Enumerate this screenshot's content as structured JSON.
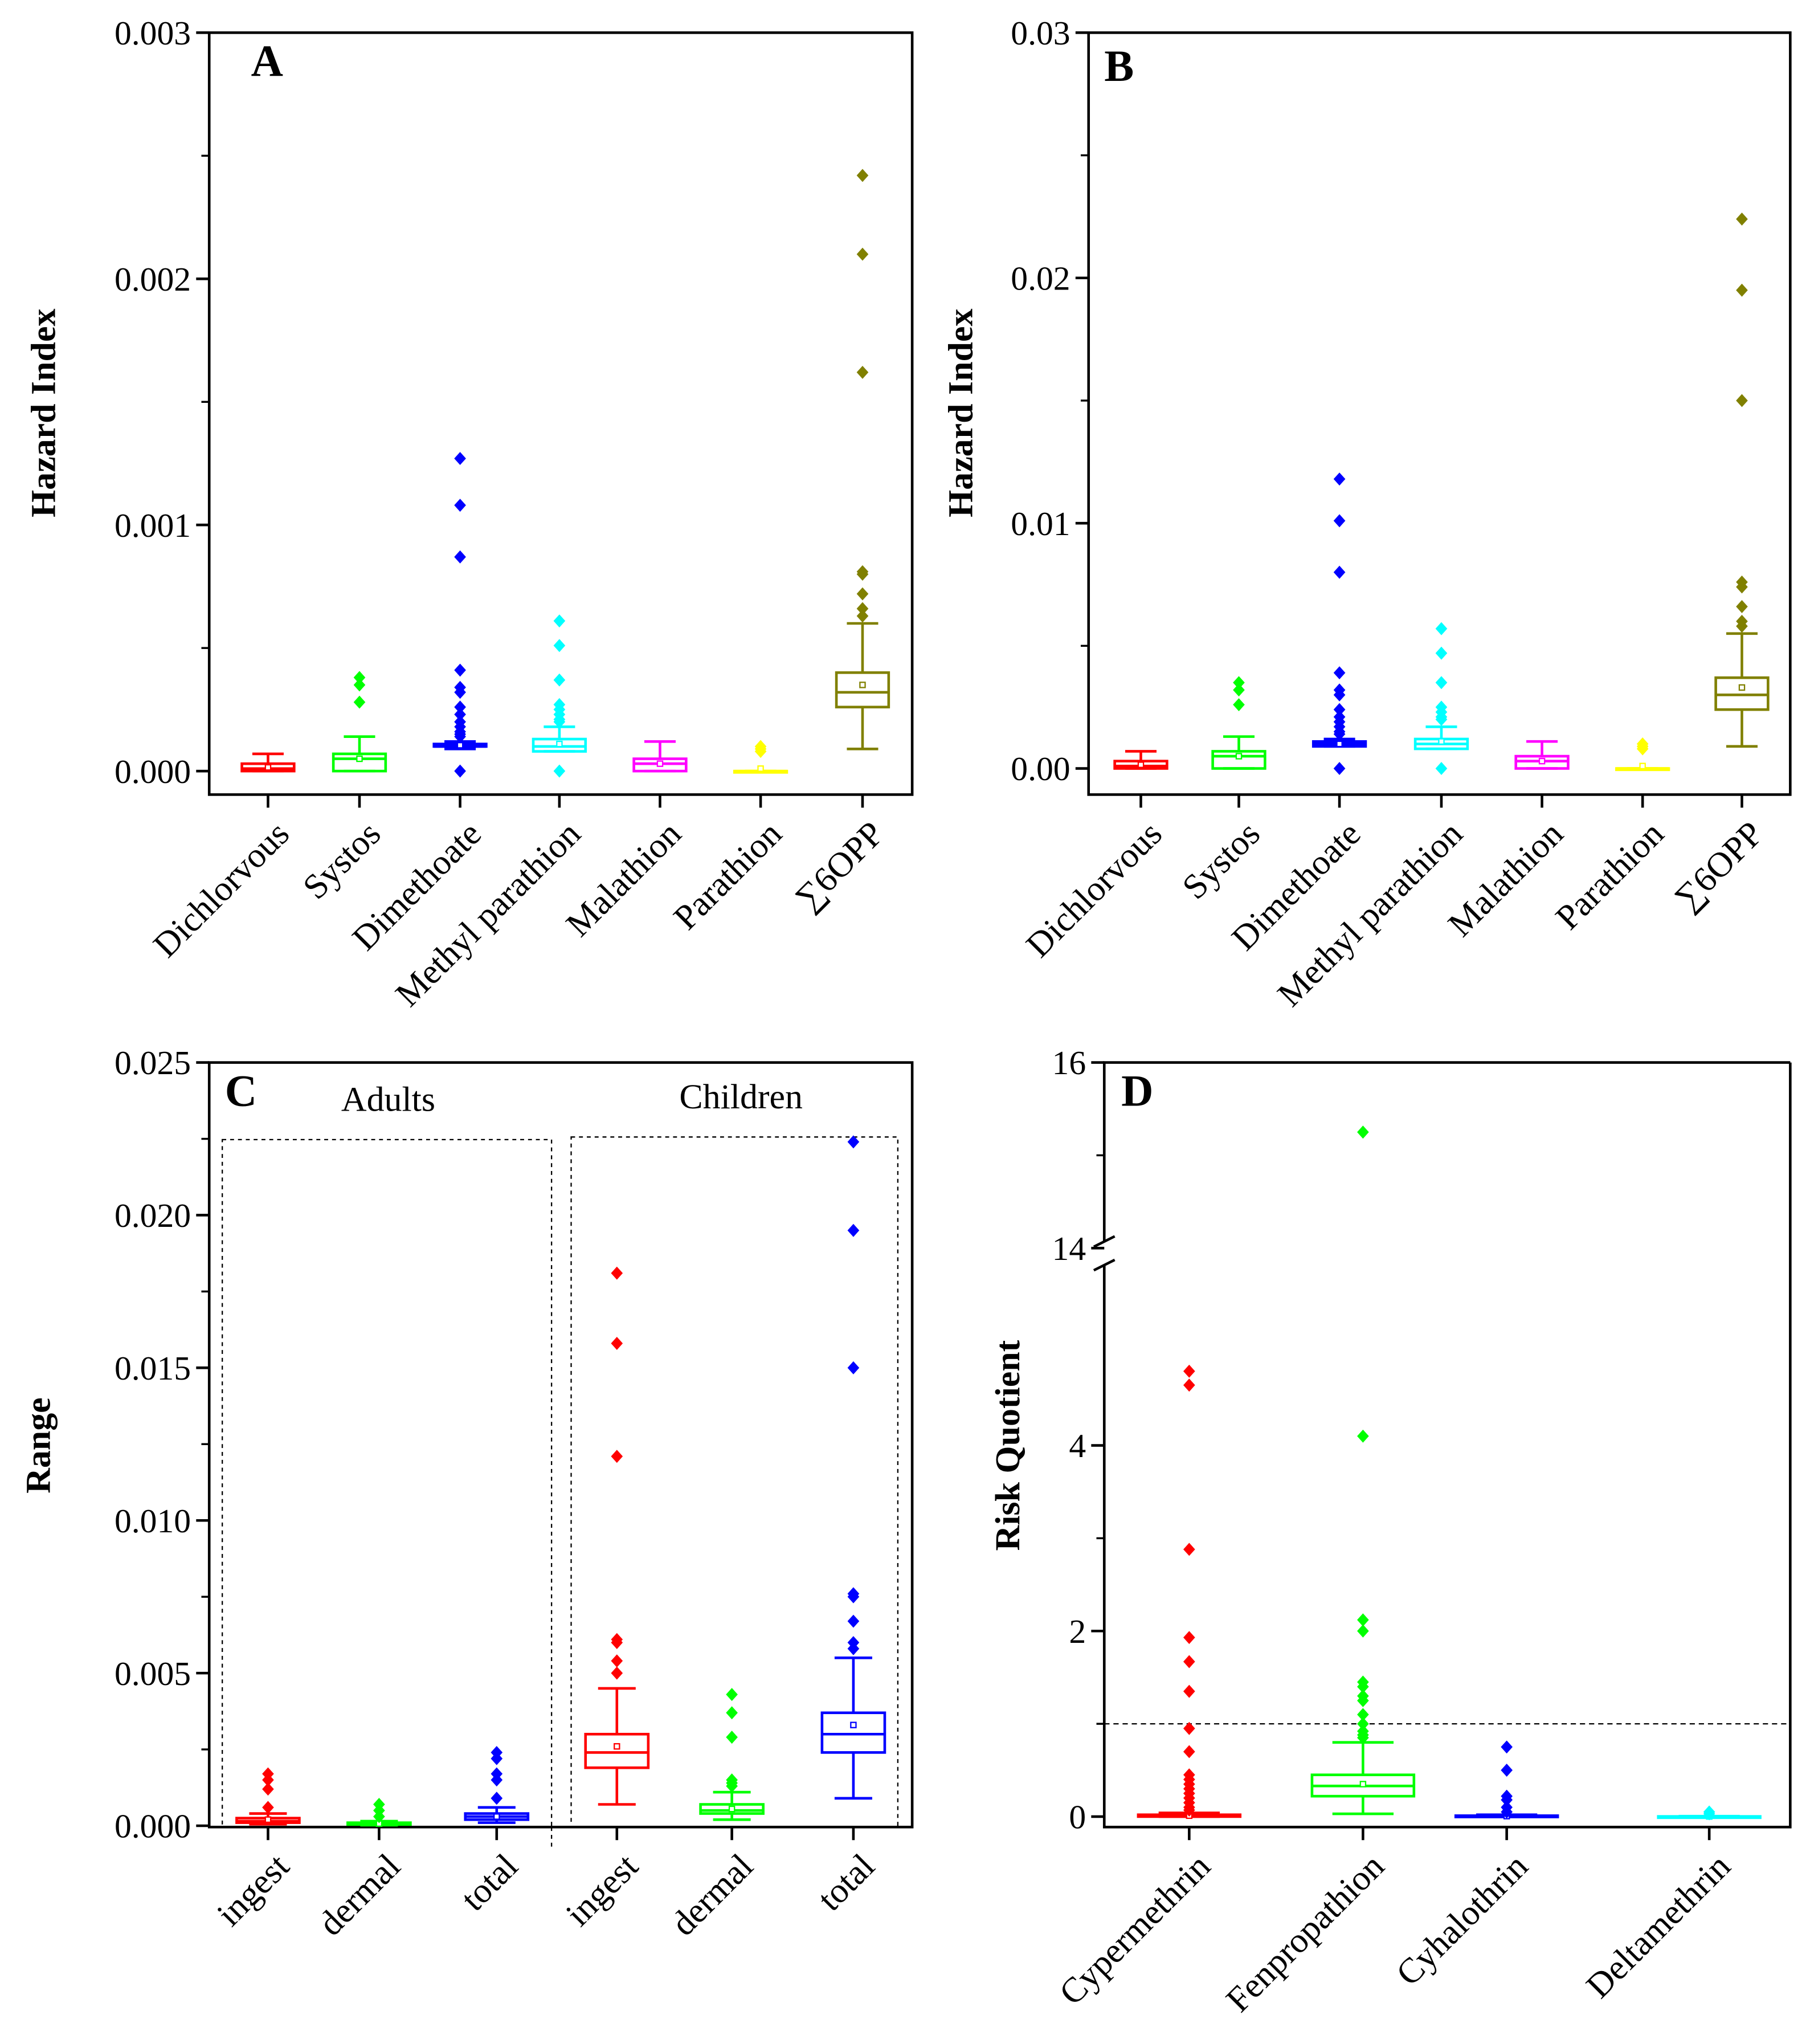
{
  "chart_data": [
    {
      "panel": "A",
      "type": "box",
      "ylabel": "Hazard Index",
      "ylim": [
        0,
        0.003
      ],
      "yticks": [
        "0.000",
        "0.001",
        "0.002",
        "0.003"
      ],
      "ytick_values": [
        0,
        0.001,
        0.002,
        0.003
      ],
      "categories": [
        "Dichlorvous",
        "Systos",
        "Dimethoate",
        "Methyl parathion",
        "Malathion",
        "Parathion",
        "∑6OPP"
      ],
      "colors": [
        "#ff0000",
        "#00ff00",
        "#0000ff",
        "#00ffff",
        "#ff00ff",
        "#ffff00",
        "#808000"
      ],
      "boxes": [
        {
          "min": 0,
          "q1": 0,
          "median": 1e-05,
          "q3": 3e-05,
          "max": 7e-05,
          "mean": 1.5e-05,
          "outliers": []
        },
        {
          "min": 0,
          "q1": 0,
          "median": 5e-05,
          "q3": 7e-05,
          "max": 0.00014,
          "mean": 5e-05,
          "outliers": [
            0.00038,
            0.00035,
            0.00028
          ]
        },
        {
          "min": 9e-05,
          "q1": 0.0001,
          "median": 0.0001,
          "q3": 0.00011,
          "max": 0.00012,
          "mean": 0.000105,
          "outliers": [
            0.00127,
            0.00108,
            0.00087,
            0.00041,
            0.00034,
            0.00032,
            0.00026,
            0.00023,
            0.0002,
            0.00018,
            0.00016,
            0.00015,
            0.00014,
            0
          ]
        },
        {
          "min": 8e-05,
          "q1": 8e-05,
          "median": 0.0001,
          "q3": 0.00013,
          "max": 0.00018,
          "mean": 0.00011,
          "outliers": [
            0.00061,
            0.00051,
            0.00037,
            0.00027,
            0.00025,
            0.00023,
            0.00021,
            0.0002,
            0
          ]
        },
        {
          "min": 0,
          "q1": 0,
          "median": 3e-05,
          "q3": 5e-05,
          "max": 0.00012,
          "mean": 3e-05,
          "outliers": []
        },
        {
          "min": 0,
          "q1": 0,
          "median": 0,
          "q3": 0,
          "max": 0,
          "mean": 1e-05,
          "outliers": [
            0.0001,
            9e-05,
            8e-05
          ]
        },
        {
          "min": 9e-05,
          "q1": 0.00026,
          "median": 0.00032,
          "q3": 0.0004,
          "max": 0.0006,
          "mean": 0.00035,
          "outliers": [
            0.00242,
            0.0021,
            0.00162,
            0.00081,
            0.0008,
            0.00072,
            0.00066,
            0.00063
          ]
        }
      ]
    },
    {
      "panel": "B",
      "type": "box",
      "ylabel": "Hazard Index",
      "ylim": [
        0,
        0.03
      ],
      "yticks": [
        "0.00",
        "0.01",
        "0.02",
        "0.03"
      ],
      "ytick_values": [
        0,
        0.01,
        0.02,
        0.03
      ],
      "categories": [
        "Dichlorvous",
        "Systos",
        "Dimethoate",
        "Methyl parathion",
        "Malathion",
        "Parathion",
        "∑6OPP"
      ],
      "colors": [
        "#ff0000",
        "#00ff00",
        "#0000ff",
        "#00ffff",
        "#ff00ff",
        "#ffff00",
        "#808000"
      ],
      "boxes": [
        {
          "min": 0,
          "q1": 0,
          "median": 0.0001,
          "q3": 0.0003,
          "max": 0.0007,
          "mean": 0.00015,
          "outliers": []
        },
        {
          "min": 0,
          "q1": 0,
          "median": 0.0005,
          "q3": 0.0007,
          "max": 0.0013,
          "mean": 0.0005,
          "outliers": [
            0.0035,
            0.0032,
            0.0026
          ]
        },
        {
          "min": 0.0009,
          "q1": 0.0009,
          "median": 0.001,
          "q3": 0.0011,
          "max": 0.0012,
          "mean": 0.001,
          "outliers": [
            0.0118,
            0.0101,
            0.008,
            0.0039,
            0.0032,
            0.003,
            0.0024,
            0.0021,
            0.0019,
            0.0017,
            0.0015,
            0.0014,
            0
          ]
        },
        {
          "min": 0.0008,
          "q1": 0.0008,
          "median": 0.001,
          "q3": 0.0012,
          "max": 0.0017,
          "mean": 0.0011,
          "outliers": [
            0.0057,
            0.0047,
            0.0035,
            0.0025,
            0.0023,
            0.0021,
            0.002,
            0
          ]
        },
        {
          "min": 0,
          "q1": 0,
          "median": 0.0003,
          "q3": 0.0005,
          "max": 0.0011,
          "mean": 0.0003,
          "outliers": []
        },
        {
          "min": 0,
          "q1": 0,
          "median": 0,
          "q3": 0,
          "max": 0,
          "mean": 0.0001,
          "outliers": [
            0.001,
            0.0009,
            0.0008
          ]
        },
        {
          "min": 0.0009,
          "q1": 0.0024,
          "median": 0.003,
          "q3": 0.0037,
          "max": 0.0055,
          "mean": 0.0033,
          "outliers": [
            0.0224,
            0.0195,
            0.015,
            0.0076,
            0.0074,
            0.0066,
            0.006,
            0.0058
          ]
        }
      ]
    },
    {
      "panel": "C",
      "type": "box",
      "ylabel": "Range",
      "ylim": [
        0,
        0.025
      ],
      "yticks": [
        "0.000",
        "0.005",
        "0.010",
        "0.015",
        "0.020",
        "0.025"
      ],
      "ytick_values": [
        0,
        0.005,
        0.01,
        0.015,
        0.02,
        0.025
      ],
      "groups": [
        "Adults",
        "Children"
      ],
      "categories": [
        "ingest",
        "dermal",
        "total",
        "ingest",
        "dermal",
        "total"
      ],
      "colors": [
        "#ff0000",
        "#00ff00",
        "#0000ff",
        "#ff0000",
        "#00ff00",
        "#0000ff"
      ],
      "boxes": [
        {
          "min": 5e-05,
          "q1": 0.0001,
          "median": 0.00015,
          "q3": 0.00025,
          "max": 0.0004,
          "mean": 0.0002,
          "outliers": [
            0.0017,
            0.0015,
            0.0012,
            0.0006
          ]
        },
        {
          "min": 2e-05,
          "q1": 4e-05,
          "median": 6e-05,
          "q3": 0.0001,
          "max": 0.00015,
          "mean": 7e-05,
          "outliers": [
            0.0007,
            0.0005,
            0.0003
          ]
        },
        {
          "min": 0.0001,
          "q1": 0.0002,
          "median": 0.0003,
          "q3": 0.0004,
          "max": 0.0006,
          "mean": 0.0003,
          "outliers": [
            0.0024,
            0.0022,
            0.0017,
            0.0015,
            0.0009
          ]
        },
        {
          "min": 0.0007,
          "q1": 0.0019,
          "median": 0.0024,
          "q3": 0.003,
          "max": 0.0045,
          "mean": 0.0026,
          "outliers": [
            0.0181,
            0.0158,
            0.0121,
            0.0061,
            0.006,
            0.0054,
            0.005
          ]
        },
        {
          "min": 0.0002,
          "q1": 0.0004,
          "median": 0.0005,
          "q3": 0.0007,
          "max": 0.0011,
          "mean": 0.00055,
          "outliers": [
            0.0043,
            0.0037,
            0.0029,
            0.0015,
            0.0014,
            0.0013
          ]
        },
        {
          "min": 0.0009,
          "q1": 0.0024,
          "median": 0.003,
          "q3": 0.0037,
          "max": 0.0055,
          "mean": 0.0033,
          "outliers": [
            0.0224,
            0.0195,
            0.015,
            0.0076,
            0.0075,
            0.0067,
            0.006,
            0.0058
          ]
        }
      ]
    },
    {
      "panel": "D",
      "type": "box",
      "ylabel": "Risk Quotient",
      "ylim": [
        0,
        16
      ],
      "axis_break": [
        4.9,
        14
      ],
      "threshold": 1,
      "yticks": [
        "0",
        "2",
        "4",
        "14",
        "16"
      ],
      "ytick_values": [
        0,
        2,
        4,
        14,
        16
      ],
      "categories": [
        "Cypermethrin",
        "Fenpropathion",
        "Cyhalothrin",
        "Deltamethrin"
      ],
      "colors": [
        "#ff0000",
        "#00ff00",
        "#0000ff",
        "#00ffff"
      ],
      "boxes": [
        {
          "min": 0,
          "q1": 0,
          "median": 0.005,
          "q3": 0.02,
          "max": 0.04,
          "mean": 0.01,
          "outliers": [
            4.8,
            4.65,
            2.88,
            1.93,
            1.67,
            1.35,
            0.95,
            0.7,
            0.45,
            0.4,
            0.35,
            0.3,
            0.25,
            0.2,
            0.15,
            0.1,
            0.07
          ]
        },
        {
          "min": 0.03,
          "q1": 0.22,
          "median": 0.33,
          "q3": 0.45,
          "max": 0.8,
          "mean": 0.35,
          "outliers": [
            15.25,
            4.1,
            2.12,
            2.0,
            1.45,
            1.4,
            1.3,
            1.25,
            1.1,
            1.0,
            0.92,
            0.88,
            0.85
          ]
        },
        {
          "min": 0,
          "q1": 0,
          "median": 0.003,
          "q3": 0.01,
          "max": 0.02,
          "mean": 0.005,
          "outliers": [
            0.75,
            0.5,
            0.22,
            0.18,
            0.1,
            0.05
          ]
        },
        {
          "min": 0,
          "q1": 0,
          "median": 0,
          "q3": 0.002,
          "max": 0.005,
          "mean": 0.001,
          "outliers": [
            0.05,
            0.03
          ]
        }
      ]
    }
  ]
}
